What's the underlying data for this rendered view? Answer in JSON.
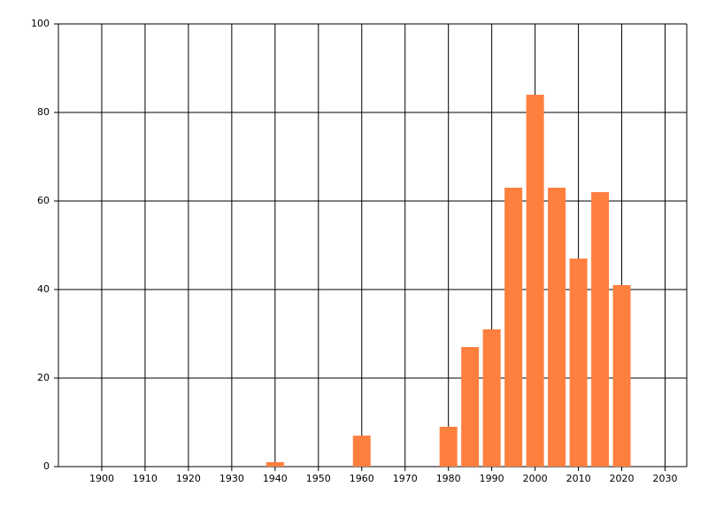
{
  "chart_data": {
    "type": "bar",
    "x": [
      1940,
      1960,
      1980,
      1985,
      1990,
      1995,
      2000,
      2005,
      2010,
      2015,
      2020
    ],
    "values": [
      1,
      7,
      9,
      27,
      31,
      63,
      84,
      63,
      47,
      62,
      41
    ],
    "color": "#ff7f3f",
    "xlim": [
      1890,
      2035
    ],
    "xticks": [
      1900,
      1910,
      1920,
      1930,
      1940,
      1950,
      1960,
      1970,
      1980,
      1990,
      2000,
      2010,
      2020,
      2030
    ],
    "ylim": [
      0,
      100
    ],
    "yticks": [
      0,
      20,
      40,
      60,
      80,
      100
    ],
    "grid": true
  }
}
